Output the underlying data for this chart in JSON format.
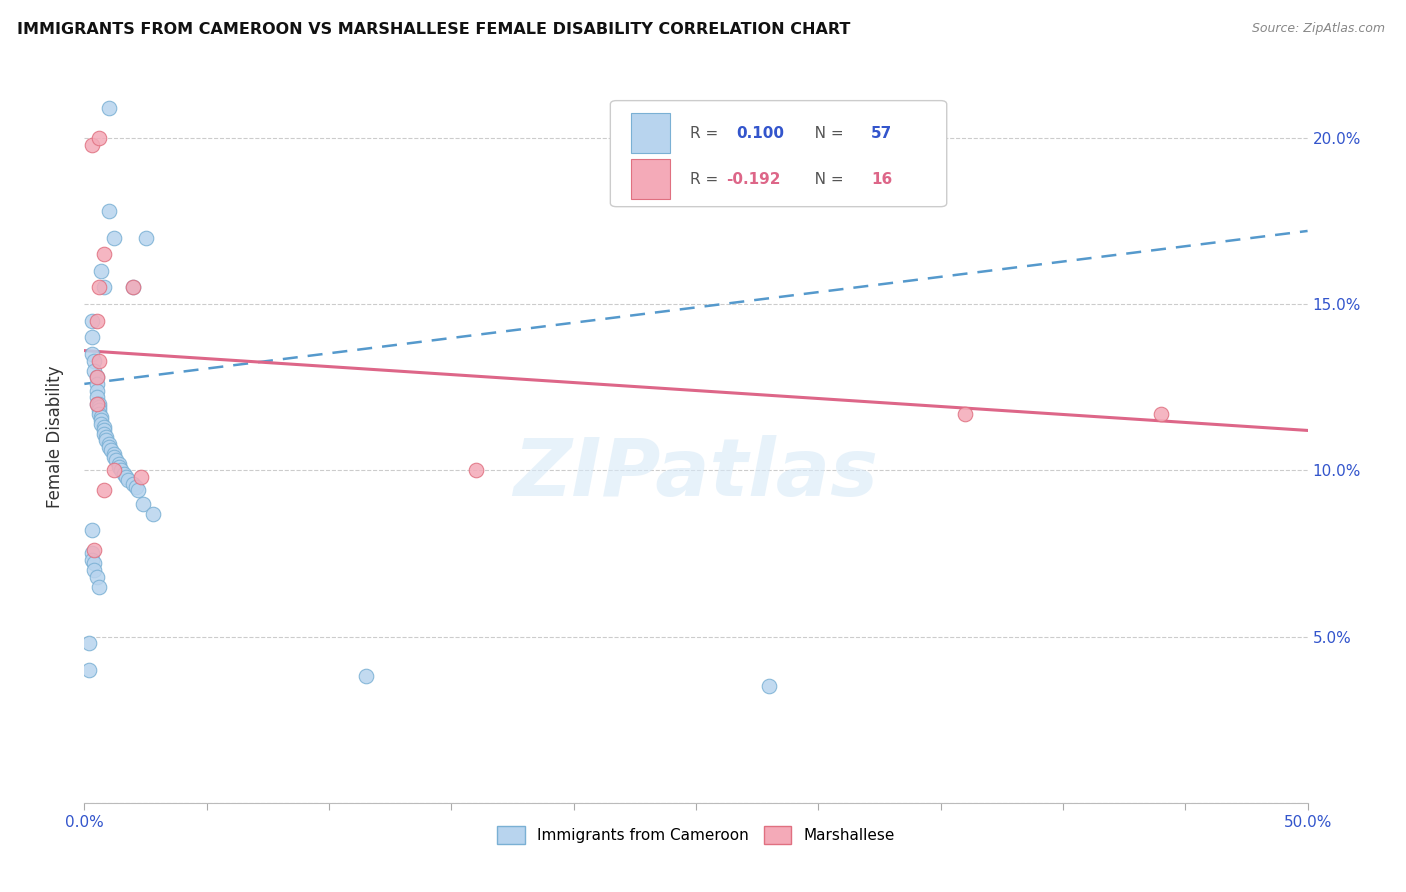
{
  "title": "IMMIGRANTS FROM CAMEROON VS MARSHALLESE FEMALE DISABILITY CORRELATION CHART",
  "source": "Source: ZipAtlas.com",
  "ylabel": "Female Disability",
  "legend_label1": "Immigrants from Cameroon",
  "legend_label2": "Marshallese",
  "R1": 0.1,
  "N1": 57,
  "R2": -0.192,
  "N2": 16,
  "color1": "#b8d4ee",
  "color2": "#f4aab8",
  "color1_edge": "#7ab0d4",
  "color2_edge": "#e07080",
  "trendline1_color": "#5599cc",
  "trendline2_color": "#dd6688",
  "watermark": "ZIPatlas",
  "yticks": [
    0.0,
    0.05,
    0.1,
    0.15,
    0.2
  ],
  "ytick_labels": [
    "",
    "5.0%",
    "10.0%",
    "15.0%",
    "20.0%"
  ],
  "xlim": [
    0.0,
    0.5
  ],
  "ylim": [
    0.0,
    0.22
  ],
  "trendline1_x0": 0.0,
  "trendline1_y0": 0.126,
  "trendline1_x1": 0.5,
  "trendline1_y1": 0.172,
  "trendline2_x0": 0.0,
  "trendline2_y0": 0.136,
  "trendline2_x1": 0.5,
  "trendline2_y1": 0.112,
  "blue_points_x": [
    0.01,
    0.01,
    0.012,
    0.007,
    0.008,
    0.02,
    0.003,
    0.003,
    0.003,
    0.004,
    0.004,
    0.005,
    0.005,
    0.005,
    0.005,
    0.005,
    0.006,
    0.006,
    0.006,
    0.006,
    0.007,
    0.007,
    0.007,
    0.008,
    0.008,
    0.008,
    0.009,
    0.009,
    0.01,
    0.01,
    0.011,
    0.012,
    0.012,
    0.013,
    0.014,
    0.014,
    0.015,
    0.016,
    0.017,
    0.018,
    0.02,
    0.021,
    0.022,
    0.024,
    0.025,
    0.003,
    0.003,
    0.004,
    0.004,
    0.005,
    0.006,
    0.002,
    0.002,
    0.115,
    0.003,
    0.028,
    0.28
  ],
  "blue_points_y": [
    0.209,
    0.178,
    0.17,
    0.16,
    0.155,
    0.155,
    0.145,
    0.14,
    0.135,
    0.133,
    0.13,
    0.128,
    0.126,
    0.124,
    0.122,
    0.12,
    0.12,
    0.119,
    0.118,
    0.117,
    0.116,
    0.115,
    0.114,
    0.113,
    0.112,
    0.111,
    0.11,
    0.109,
    0.108,
    0.107,
    0.106,
    0.105,
    0.104,
    0.103,
    0.102,
    0.101,
    0.1,
    0.099,
    0.098,
    0.097,
    0.096,
    0.095,
    0.094,
    0.09,
    0.17,
    0.075,
    0.073,
    0.072,
    0.07,
    0.068,
    0.065,
    0.048,
    0.04,
    0.038,
    0.082,
    0.087,
    0.035
  ],
  "pink_points_x": [
    0.003,
    0.006,
    0.008,
    0.005,
    0.006,
    0.006,
    0.005,
    0.005,
    0.004,
    0.02,
    0.012,
    0.023,
    0.008,
    0.36,
    0.44,
    0.16
  ],
  "pink_points_y": [
    0.198,
    0.2,
    0.165,
    0.145,
    0.133,
    0.155,
    0.128,
    0.12,
    0.076,
    0.155,
    0.1,
    0.098,
    0.094,
    0.117,
    0.117,
    0.1
  ]
}
